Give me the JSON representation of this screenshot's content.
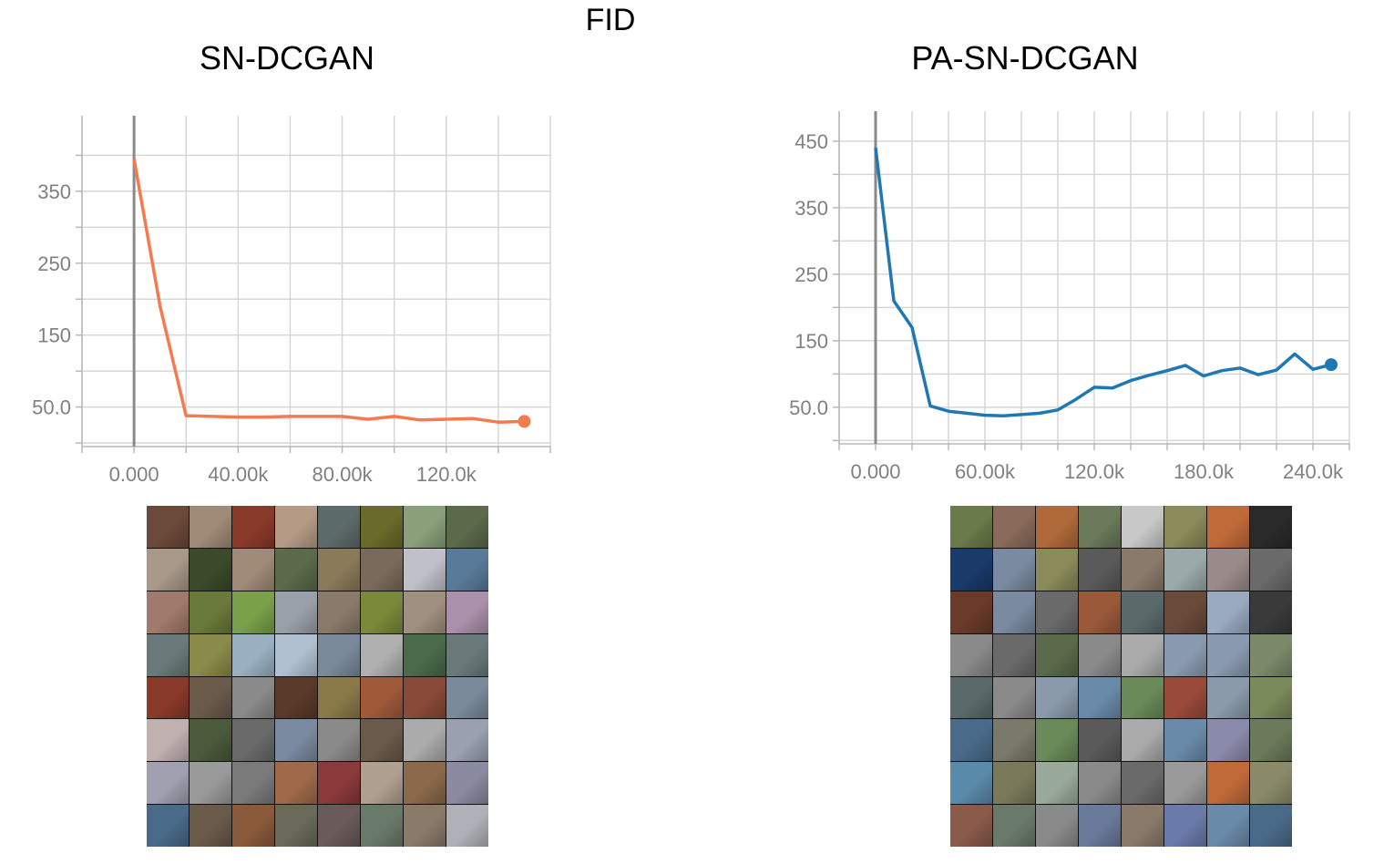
{
  "figure": {
    "title": "FID",
    "panels": [
      {
        "title": "SN-DCGAN"
      },
      {
        "title": "PA-SN-DCGAN"
      }
    ]
  },
  "chart_data": [
    {
      "type": "line",
      "title": "SN-DCGAN",
      "color": "#f47a4f",
      "x": [
        0,
        10000,
        20000,
        30000,
        40000,
        50000,
        60000,
        70000,
        80000,
        90000,
        100000,
        110000,
        120000,
        130000,
        140000,
        150000
      ],
      "y": [
        395,
        190,
        38,
        37,
        36,
        36,
        37,
        37,
        37,
        33,
        37,
        32,
        33,
        34,
        29,
        30
      ],
      "xlim": [
        -20000,
        160000
      ],
      "ylim": [
        -5,
        455
      ],
      "xticks": [
        0,
        40000,
        80000,
        120000
      ],
      "xtick_labels": [
        "0.000",
        "40.00k",
        "80.00k",
        "120.0k"
      ],
      "yticks": [
        50,
        150,
        250,
        350
      ],
      "ytick_labels": [
        "50.0",
        "150",
        "250",
        "350"
      ],
      "x_gridlines": [
        -20000,
        0,
        20000,
        40000,
        60000,
        80000,
        100000,
        120000,
        140000,
        160000
      ],
      "y_gridlines": [
        0,
        50,
        100,
        150,
        200,
        250,
        300,
        350,
        400
      ],
      "grid": true
    },
    {
      "type": "line",
      "title": "PA-SN-DCGAN",
      "color": "#1f77b4",
      "x": [
        0,
        10000,
        20000,
        30000,
        40000,
        50000,
        60000,
        70000,
        80000,
        90000,
        100000,
        110000,
        120000,
        130000,
        140000,
        150000,
        160000,
        170000,
        180000,
        190000,
        200000,
        210000,
        220000,
        230000,
        240000,
        250000
      ],
      "y": [
        440,
        210,
        170,
        52,
        44,
        41,
        38,
        37,
        39,
        41,
        46,
        62,
        80,
        79,
        90,
        98,
        105,
        113,
        97,
        105,
        109,
        99,
        106,
        130,
        107,
        114
      ],
      "xlim": [
        -20000,
        260000
      ],
      "ylim": [
        -5,
        495
      ],
      "xticks": [
        0,
        60000,
        120000,
        180000,
        240000
      ],
      "xtick_labels": [
        "0.000",
        "60.00k",
        "120.0k",
        "180.0k",
        "240.0k"
      ],
      "yticks": [
        50,
        150,
        250,
        350,
        450
      ],
      "ytick_labels": [
        "50.0",
        "150",
        "250",
        "350",
        "450"
      ],
      "x_gridlines": [
        -20000,
        0,
        20000,
        40000,
        60000,
        80000,
        100000,
        120000,
        140000,
        160000,
        180000,
        200000,
        220000,
        240000,
        260000
      ],
      "y_gridlines": [
        0,
        50,
        100,
        150,
        200,
        250,
        300,
        350,
        400,
        450
      ],
      "grid": true
    }
  ],
  "samples": [
    {
      "colors": [
        "#6b4a3a",
        "#a08a78",
        "#8a3a2a",
        "#b59b86",
        "#5d6a6a",
        "#6a6a2a",
        "#8aa07a",
        "#5a6a4a",
        "#a89888",
        "#3a4a2a",
        "#a08a78",
        "#5a6a4a",
        "#8a7a5a",
        "#7a6a5a",
        "#c0c0c8",
        "#5a7a9a",
        "#a07a6a",
        "#6a7a3a",
        "#7aa04a",
        "#9aa0aa",
        "#8a7a6a",
        "#7a8a3a",
        "#a09080",
        "#aa90aa",
        "#6a7a7a",
        "#8a8a4a",
        "#9ab0c0",
        "#b0c0d0",
        "#7a8a9a",
        "#b0b0b0",
        "#4a6a4a",
        "#6a7a7a",
        "#8a3a2a",
        "#6a5a4a",
        "#8a8a8a",
        "#5a3a2a",
        "#8a7a4a",
        "#a05a3a",
        "#8a4a3a",
        "#7a8a9a",
        "#c0b0b0",
        "#4a5a3a",
        "#6a6a6a",
        "#7a8aa0",
        "#8a8a8a",
        "#6a5a4a",
        "#aaaaaa",
        "#9aa0b0",
        "#a0a0b0",
        "#9a9a9a",
        "#7a7a7a",
        "#a06a4a",
        "#8a3a3a",
        "#b0a090",
        "#8a6a4a",
        "#8a8aa0",
        "#4a6a8a",
        "#6a5a4a",
        "#8a5a3a",
        "#6a6a5a",
        "#6a5a5a",
        "#6a7a6a",
        "#8a7a6a",
        "#b0b0b8"
      ]
    },
    {
      "colors": [
        "#6a7a4a",
        "#8a6a5a",
        "#b06a3a",
        "#6a7a5a",
        "#c8c8c8",
        "#8a8a5a",
        "#c06a3a",
        "#2a2a2a",
        "#1a3a6a",
        "#7a8aa0",
        "#8a8a5a",
        "#5a5a5a",
        "#8a7a6a",
        "#9aaaaa",
        "#9a8a8a",
        "#6a6a6a",
        "#6a3a2a",
        "#7a8aa0",
        "#6a6a6a",
        "#9a5a3a",
        "#5a6a6a",
        "#6a4a3a",
        "#9aaac0",
        "#3a3a3a",
        "#8a8a8a",
        "#6a6a6a",
        "#5a6a4a",
        "#8a8a8a",
        "#aaaaaa",
        "#8a9ab0",
        "#8a9ab0",
        "#7a8a6a",
        "#5a6a6a",
        "#8a8a8a",
        "#8a9aaa",
        "#6a8aaa",
        "#6a8a5a",
        "#9a4a3a",
        "#8a9aaa",
        "#7a8a5a",
        "#4a6a8a",
        "#7a7a6a",
        "#6a8a5a",
        "#5a5a5a",
        "#aaaaaa",
        "#6a8aaa",
        "#8a8aaa",
        "#6a7a5a",
        "#5a8aaa",
        "#7a7a5a",
        "#9aaa9a",
        "#8a8a8a",
        "#6a6a6a",
        "#9a9a9a",
        "#c06a3a",
        "#8a8a6a",
        "#8a5a4a",
        "#6a7a6a",
        "#8a8a8a",
        "#6a7a9a",
        "#8a7a6a",
        "#6a7aaa",
        "#6a8aaa",
        "#4a6a8a"
      ]
    }
  ]
}
